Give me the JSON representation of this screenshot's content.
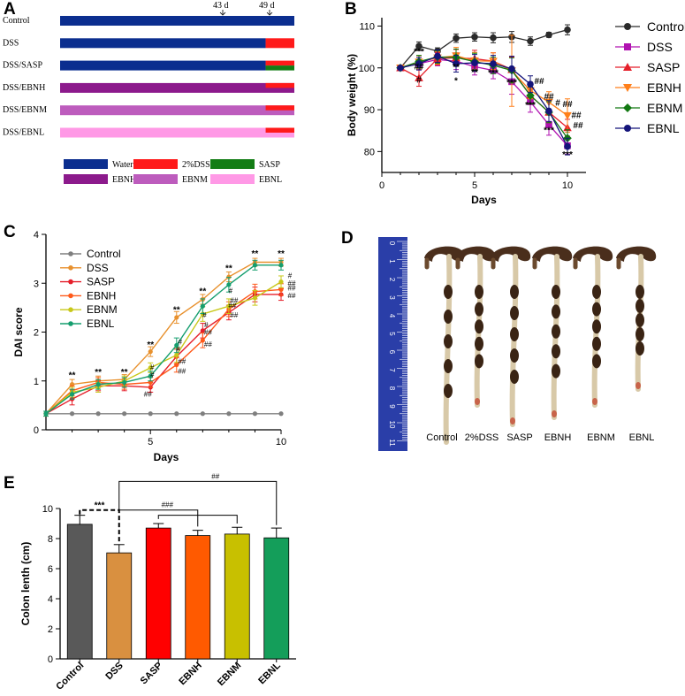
{
  "panels": {
    "a": "A",
    "b": "B",
    "c": "C",
    "d": "D",
    "e": "E"
  },
  "colors": {
    "water": "#0b2e8f",
    "dss": "#ff1a1a",
    "sasp": "#137d15",
    "ebnh": "#8c1a8c",
    "ebnm": "#bd5cbd",
    "ebnl": "#ff99e6",
    "control_line": "#2a2a2a",
    "dss_line": "#b012b0",
    "sasp_line": "#e51f2a",
    "ebnh_line": "#ff7f1a",
    "ebnm_line": "#127812",
    "ebnl_line": "#14147a",
    "c_control": "#7f7f7f",
    "c_dss": "#e8912e",
    "c_sasp": "#e51f2a",
    "c_ebnh": "#ff5a1a",
    "c_ebnm": "#c8c81a",
    "c_ebnl": "#159e6e",
    "e_control": "#595959",
    "e_dss": "#d99040",
    "e_sasp": "#ff0000",
    "e_ebnh": "#ff5a00",
    "e_ebnm": "#c8c000",
    "e_ebnl": "#149e5a"
  },
  "schema": {
    "marker_43": "43 d",
    "marker_49": "49 d",
    "rows": [
      {
        "label": "Control",
        "segments": [
          {
            "from": 0,
            "to": 49,
            "color": "water"
          }
        ]
      },
      {
        "label": "DSS",
        "segments": [
          {
            "from": 0,
            "to": 43,
            "color": "water"
          },
          {
            "from": 43,
            "to": 49,
            "color": "dss"
          }
        ]
      },
      {
        "label": "DSS/SASP",
        "segments": [
          {
            "from": 0,
            "to": 43,
            "color": "water"
          },
          {
            "from": 43,
            "to": 49,
            "color": "dss",
            "half": "top"
          },
          {
            "from": 43,
            "to": 49,
            "color": "sasp",
            "half": "bottom"
          }
        ]
      },
      {
        "label": "DSS/EBNH",
        "segments": [
          {
            "from": 0,
            "to": 49,
            "color": "ebnh"
          },
          {
            "from": 43,
            "to": 49,
            "color": "dss",
            "half": "top"
          }
        ]
      },
      {
        "label": "DSS/EBNM",
        "segments": [
          {
            "from": 0,
            "to": 49,
            "color": "ebnm"
          },
          {
            "from": 43,
            "to": 49,
            "color": "dss",
            "half": "top"
          }
        ]
      },
      {
        "label": "DSS/EBNL",
        "segments": [
          {
            "from": 0,
            "to": 49,
            "color": "ebnl"
          },
          {
            "from": 43,
            "to": 49,
            "color": "dss",
            "half": "top"
          }
        ]
      }
    ],
    "legend": [
      {
        "label": "Water",
        "color": "water"
      },
      {
        "label": "2%DSS",
        "color": "dss"
      },
      {
        "label": "SASP",
        "color": "sasp"
      },
      {
        "label": "EBNH",
        "color": "ebnh"
      },
      {
        "label": "EBNM",
        "color": "ebnm"
      },
      {
        "label": "EBNL",
        "color": "ebnl"
      }
    ]
  },
  "chart_data": [
    {
      "id": "B",
      "type": "line",
      "xlabel": "Days",
      "ylabel": "Body weight (%)",
      "xlim": [
        0,
        11
      ],
      "ylim": [
        75,
        112
      ],
      "xticks": [
        0,
        5,
        10
      ],
      "yticks": [
        80,
        90,
        100,
        110
      ],
      "x": [
        1,
        2,
        3,
        4,
        5,
        6,
        7,
        8,
        9,
        10
      ],
      "series": [
        {
          "name": "Control",
          "color": "control_line",
          "marker": "circle",
          "values": [
            100,
            105.2,
            104,
            107.1,
            107.4,
            107.2,
            107.4,
            106.4,
            107.9,
            109.1
          ],
          "err": [
            0.5,
            1,
            0.8,
            1,
            1,
            1.2,
            1.3,
            1,
            0.6,
            1.2
          ]
        },
        {
          "name": "DSS",
          "color": "dss_line",
          "marker": "square",
          "values": [
            100,
            101,
            102,
            101.6,
            100.3,
            99.4,
            96.7,
            91.9,
            86.4,
            81.4
          ],
          "err": [
            0.4,
            1.5,
            1.5,
            2,
            2,
            2,
            3,
            2.5,
            2.5,
            2
          ]
        },
        {
          "name": "SASP",
          "color": "sasp_line",
          "marker": "triangle-up",
          "values": [
            100,
            97.6,
            102.2,
            102.4,
            102.2,
            101.6,
            99.6,
            93.4,
            89.4,
            85.7
          ],
          "err": [
            0.4,
            2,
            1.5,
            2,
            2,
            2,
            3,
            2,
            2.5,
            2
          ]
        },
        {
          "name": "EBNH",
          "color": "ebnh_line",
          "marker": "triangle-down",
          "values": [
            100,
            101.4,
            102.4,
            102.9,
            101.7,
            101.6,
            99.3,
            94.6,
            91.8,
            88.6
          ],
          "err": [
            0.4,
            1.5,
            1.5,
            2,
            2,
            2,
            8.5,
            2,
            2.5,
            4
          ]
        },
        {
          "name": "EBNM",
          "color": "ebnm_line",
          "marker": "diamond",
          "values": [
            100,
            101.5,
            102.6,
            102.5,
            101.5,
            100.6,
            99.4,
            93.4,
            89.4,
            83.2
          ],
          "err": [
            0.4,
            1.5,
            1.5,
            2,
            2,
            2,
            3,
            2,
            2.5,
            2
          ]
        },
        {
          "name": "EBNL",
          "color": "ebnl_line",
          "marker": "circle",
          "values": [
            100,
            101,
            102.8,
            101,
            101.2,
            101,
            99.8,
            96.1,
            89.7,
            81.2
          ],
          "err": [
            0.4,
            1.5,
            1.5,
            2,
            2,
            2,
            3,
            2,
            2.5,
            2
          ]
        }
      ],
      "annotations": [
        {
          "x": 2,
          "y": 103.2,
          "text": "***"
        },
        {
          "x": 2,
          "y": 99.6,
          "text": "##"
        },
        {
          "x": 2,
          "y": 96.5,
          "text": "#"
        },
        {
          "x": 4,
          "y": 99.5,
          "text": "**"
        },
        {
          "x": 4,
          "y": 96.3,
          "text": "*"
        },
        {
          "x": 5,
          "y": 98.3,
          "text": "**"
        },
        {
          "x": 6,
          "y": 98.2,
          "text": "***"
        },
        {
          "x": 7,
          "y": 95.8,
          "text": "***"
        },
        {
          "x": 8,
          "y": 96.1,
          "text": "##",
          "dx": 10
        },
        {
          "x": 8,
          "y": 90.4,
          "text": "***"
        },
        {
          "x": 9,
          "y": 92.4,
          "text": "##"
        },
        {
          "x": 9,
          "y": 91,
          "text": "#",
          "dx": 10
        },
        {
          "x": 9,
          "y": 84.4,
          "text": "***"
        },
        {
          "x": 10,
          "y": 90.6,
          "text": "##"
        },
        {
          "x": 10,
          "y": 88,
          "text": "##",
          "dx": 10
        },
        {
          "x": 10,
          "y": 85.6,
          "text": "##",
          "dx": 12
        },
        {
          "x": 10,
          "y": 78.6,
          "text": "***"
        }
      ]
    },
    {
      "id": "C",
      "type": "line",
      "xlabel": "Days",
      "ylabel": "DAI score",
      "xlim": [
        1,
        10
      ],
      "ylim": [
        0,
        4
      ],
      "xticks": [
        5,
        10
      ],
      "yticks": [
        0,
        1,
        2,
        3,
        4
      ],
      "x": [
        1,
        2,
        3,
        4,
        5,
        6,
        7,
        8,
        9,
        10
      ],
      "series": [
        {
          "name": "Control",
          "color": "c_control",
          "values": [
            0.33,
            0.33,
            0.33,
            0.33,
            0.33,
            0.33,
            0.33,
            0.33,
            0.33,
            0.33
          ],
          "err": [
            0,
            0,
            0,
            0,
            0,
            0,
            0,
            0,
            0,
            0
          ]
        },
        {
          "name": "DSS",
          "color": "c_dss",
          "values": [
            0.33,
            0.93,
            1,
            1.03,
            1.6,
            2.3,
            2.67,
            3.13,
            3.43,
            3.43
          ],
          "err": [
            0.05,
            0.1,
            0.1,
            0.1,
            0.1,
            0.12,
            0.1,
            0.1,
            0.08,
            0.08
          ]
        },
        {
          "name": "SASP",
          "color": "c_sasp",
          "values": [
            0.33,
            0.63,
            0.9,
            0.9,
            0.87,
            1.5,
            2.03,
            2.4,
            2.77,
            2.77
          ],
          "err": [
            0.05,
            0.12,
            0.1,
            0.1,
            0.1,
            0.15,
            0.15,
            0.15,
            0.15,
            0.12
          ]
        },
        {
          "name": "EBNH",
          "color": "c_ebnh",
          "values": [
            0.33,
            0.8,
            0.97,
            0.93,
            0.97,
            1.33,
            1.83,
            2.47,
            2.83,
            2.87
          ],
          "err": [
            0.05,
            0.1,
            0.1,
            0.1,
            0.1,
            0.15,
            0.15,
            0.15,
            0.15,
            0.12
          ]
        },
        {
          "name": "EBNM",
          "color": "c_ebnm",
          "values": [
            0.33,
            0.77,
            0.87,
            1,
            1.27,
            1.53,
            2.37,
            2.53,
            2.7,
            3.03
          ],
          "err": [
            0.05,
            0.1,
            0.1,
            0.1,
            0.1,
            0.15,
            0.15,
            0.15,
            0.15,
            0.12
          ]
        },
        {
          "name": "EBNL",
          "color": "c_ebnl",
          "values": [
            0.33,
            0.73,
            0.93,
            0.97,
            1.1,
            1.73,
            2.53,
            2.97,
            3.37,
            3.37
          ],
          "err": [
            0.05,
            0.1,
            0.1,
            0.1,
            0.1,
            0.15,
            0.15,
            0.15,
            0.1,
            0.1
          ]
        }
      ],
      "annotations": [
        {
          "x": 2,
          "y": 1.06,
          "text": "**"
        },
        {
          "x": 3,
          "y": 1.12,
          "text": "**"
        },
        {
          "x": 4,
          "y": 1.12,
          "text": "**"
        },
        {
          "x": 5,
          "y": 1.68,
          "text": "**"
        },
        {
          "x": 5,
          "y": 1.23,
          "text": "#",
          "dx": 2
        },
        {
          "x": 5,
          "y": 1.08,
          "text": "#",
          "dx": 2
        },
        {
          "x": 5,
          "y": 0.68,
          "text": "##",
          "dx": -3
        },
        {
          "x": 6,
          "y": 2.4,
          "text": "**"
        },
        {
          "x": 6,
          "y": 1.75,
          "text": "#",
          "dx": 4
        },
        {
          "x": 6,
          "y": 1.6,
          "text": "#",
          "dx": 2
        },
        {
          "x": 6,
          "y": 1.35,
          "text": "##",
          "dx": 6
        },
        {
          "x": 6,
          "y": 1.15,
          "text": "##",
          "dx": 6
        },
        {
          "x": 7,
          "y": 2.78,
          "text": "**"
        },
        {
          "x": 7,
          "y": 2.3,
          "text": "#",
          "dx": 2
        },
        {
          "x": 7,
          "y": 2.1,
          "text": "#",
          "dx": 4
        },
        {
          "x": 7,
          "y": 1.95,
          "text": "##",
          "dx": 6
        },
        {
          "x": 7,
          "y": 1.7,
          "text": "##",
          "dx": 6
        },
        {
          "x": 8,
          "y": 3.25,
          "text": "**"
        },
        {
          "x": 8,
          "y": 2.8,
          "text": "#",
          "dx": 2
        },
        {
          "x": 8,
          "y": 2.6,
          "text": "##",
          "dx": 6
        },
        {
          "x": 8,
          "y": 2.5,
          "text": "##",
          "dx": 4
        },
        {
          "x": 8,
          "y": 2.3,
          "text": "##",
          "dx": 6
        },
        {
          "x": 9,
          "y": 3.55,
          "text": "**"
        },
        {
          "x": 10,
          "y": 3.55,
          "text": "**"
        },
        {
          "x": 10,
          "y": 3.1,
          "text": "#",
          "dx": 10
        },
        {
          "x": 10,
          "y": 2.95,
          "text": "##",
          "dx": 12
        },
        {
          "x": 10,
          "y": 2.85,
          "text": "##",
          "dx": 12
        },
        {
          "x": 10,
          "y": 2.7,
          "text": "##",
          "dx": 12
        }
      ]
    },
    {
      "id": "E",
      "type": "bar",
      "xlabel": "",
      "ylabel": "Colon lenth (cm)",
      "ylim": [
        0,
        10
      ],
      "yticks": [
        0,
        2,
        4,
        6,
        8,
        10
      ],
      "categories": [
        "Control",
        "DSS",
        "SASP",
        "EBNH",
        "EBNM",
        "EBNL"
      ],
      "values": [
        8.95,
        7.05,
        8.7,
        8.2,
        8.3,
        8.05
      ],
      "err": [
        0.6,
        0.55,
        0.3,
        0.35,
        0.45,
        0.65
      ],
      "bar_colors": [
        "e_control",
        "e_dss",
        "e_sasp",
        "e_ebnh",
        "e_ebnm",
        "e_ebnl"
      ],
      "significance": [
        {
          "text": "***",
          "kind": "dss-vs-control"
        },
        {
          "text": "###",
          "kind": "dss-vs-ebnh"
        },
        {
          "text": "##",
          "kind": "dss-vs-ebnl"
        }
      ]
    }
  ],
  "photo": {
    "labels": [
      "Control",
      "2%DSS",
      "SASP",
      "EBNH",
      "EBNM",
      "EBNL"
    ],
    "ruler_numbers": [
      "0",
      "1",
      "2",
      "3",
      "4",
      "5",
      "6",
      "7",
      "8",
      "9",
      "10",
      "11"
    ]
  }
}
